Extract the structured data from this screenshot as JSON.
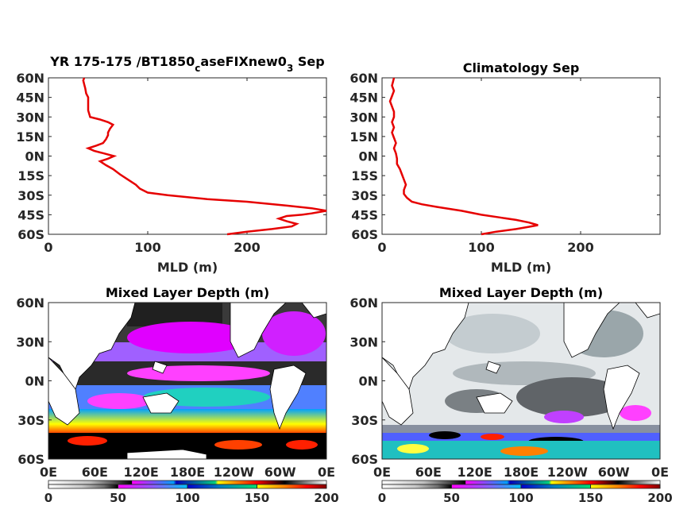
{
  "chart_data": [
    {
      "type": "line",
      "title": "YR 175-175 /BT1850",
      "title_sub": "c",
      "title_mid": "aseFIXnew0",
      "title_sub2": "3",
      "title_end": " Sep",
      "xlabel": "MLD (m)",
      "xlim": [
        0,
        280
      ],
      "xticks": [
        "0",
        "100",
        "200"
      ],
      "ylim": [
        -60,
        60
      ],
      "yticks": [
        "60N",
        "45N",
        "30N",
        "15N",
        "0N",
        "15S",
        "30S",
        "45S",
        "60S"
      ],
      "series": [
        {
          "color": "#e60000",
          "points": [
            [
              180,
              -60
            ],
            [
              200,
              -58
            ],
            [
              225,
              -56
            ],
            [
              245,
              -54
            ],
            [
              250,
              -52
            ],
            [
              240,
              -50
            ],
            [
              232,
              -48
            ],
            [
              240,
              -46
            ],
            [
              255,
              -45
            ],
            [
              265,
              -44
            ],
            [
              280,
              -42
            ],
            [
              265,
              -40
            ],
            [
              240,
              -38
            ],
            [
              200,
              -35
            ],
            [
              160,
              -33
            ],
            [
              120,
              -30
            ],
            [
              100,
              -28
            ],
            [
              92,
              -25
            ],
            [
              88,
              -22
            ],
            [
              80,
              -18
            ],
            [
              72,
              -14
            ],
            [
              65,
              -10
            ],
            [
              58,
              -7
            ],
            [
              52,
              -4
            ],
            [
              60,
              -2
            ],
            [
              66,
              0
            ],
            [
              56,
              2
            ],
            [
              46,
              4
            ],
            [
              40,
              6
            ],
            [
              48,
              8
            ],
            [
              55,
              10
            ],
            [
              58,
              13
            ],
            [
              60,
              16
            ],
            [
              60,
              18
            ],
            [
              62,
              21
            ],
            [
              65,
              24
            ],
            [
              60,
              26
            ],
            [
              52,
              28
            ],
            [
              42,
              30
            ],
            [
              40,
              35
            ],
            [
              40,
              40
            ],
            [
              40,
              45
            ],
            [
              38,
              48
            ],
            [
              37,
              52
            ],
            [
              36,
              55
            ],
            [
              35,
              58
            ],
            [
              36,
              60
            ]
          ]
        }
      ]
    },
    {
      "type": "line",
      "title": "Climatology Sep",
      "xlabel": "MLD (m)",
      "xlim": [
        0,
        280
      ],
      "xticks": [
        "0",
        "100",
        "200"
      ],
      "ylim": [
        -60,
        60
      ],
      "yticks": [
        "60N",
        "45N",
        "30N",
        "15N",
        "0N",
        "15S",
        "30S",
        "45S",
        "60S"
      ],
      "series": [
        {
          "color": "#e60000",
          "points": [
            [
              100,
              -60
            ],
            [
              115,
              -58
            ],
            [
              135,
              -56
            ],
            [
              150,
              -54
            ],
            [
              157,
              -53
            ],
            [
              148,
              -51
            ],
            [
              135,
              -49
            ],
            [
              118,
              -47
            ],
            [
              100,
              -45
            ],
            [
              80,
              -42
            ],
            [
              55,
              -39
            ],
            [
              40,
              -37
            ],
            [
              30,
              -35
            ],
            [
              25,
              -32
            ],
            [
              22,
              -29
            ],
            [
              22,
              -26
            ],
            [
              24,
              -22
            ],
            [
              22,
              -18
            ],
            [
              20,
              -14
            ],
            [
              18,
              -10
            ],
            [
              15,
              -6
            ],
            [
              15,
              -2
            ],
            [
              14,
              2
            ],
            [
              12,
              6
            ],
            [
              14,
              10
            ],
            [
              12,
              14
            ],
            [
              10,
              18
            ],
            [
              12,
              22
            ],
            [
              10,
              26
            ],
            [
              12,
              30
            ],
            [
              12,
              34
            ],
            [
              10,
              38
            ],
            [
              8,
              42
            ],
            [
              10,
              46
            ],
            [
              12,
              50
            ],
            [
              10,
              54
            ],
            [
              11,
              57
            ],
            [
              12,
              60
            ]
          ]
        }
      ]
    },
    {
      "type": "heatmap",
      "title": "Mixed Layer Depth (m)",
      "xticks": [
        "0E",
        "60E",
        "120E",
        "180E",
        "120W",
        "60W",
        "0E"
      ],
      "yticks": [
        "60N",
        "30N",
        "0N",
        "30S",
        "60S"
      ],
      "colorbar": {
        "ticks": [
          "0",
          "50",
          "100",
          "150",
          "200"
        ],
        "range": [
          0,
          200
        ]
      },
      "colormap": [
        "#ffffff",
        "#d0d0d0",
        "#8a8a8a",
        "#3a3a3a",
        "#000000",
        "#ff00ff",
        "#9a5cff",
        "#00a0ff",
        "#0020e0",
        "#10c0c0",
        "#10e060",
        "#ffff40",
        "#ffa000",
        "#ff2000",
        "#a00000"
      ]
    },
    {
      "type": "heatmap",
      "title": "Mixed Layer Depth (m)",
      "xticks": [
        "0E",
        "60E",
        "120E",
        "180E",
        "120W",
        "60W",
        "0E"
      ],
      "yticks": [
        "60N",
        "30N",
        "0N",
        "30S",
        "60S"
      ],
      "colorbar": {
        "ticks": [
          "0",
          "50",
          "100",
          "150",
          "200"
        ],
        "range": [
          0,
          200
        ]
      }
    }
  ]
}
